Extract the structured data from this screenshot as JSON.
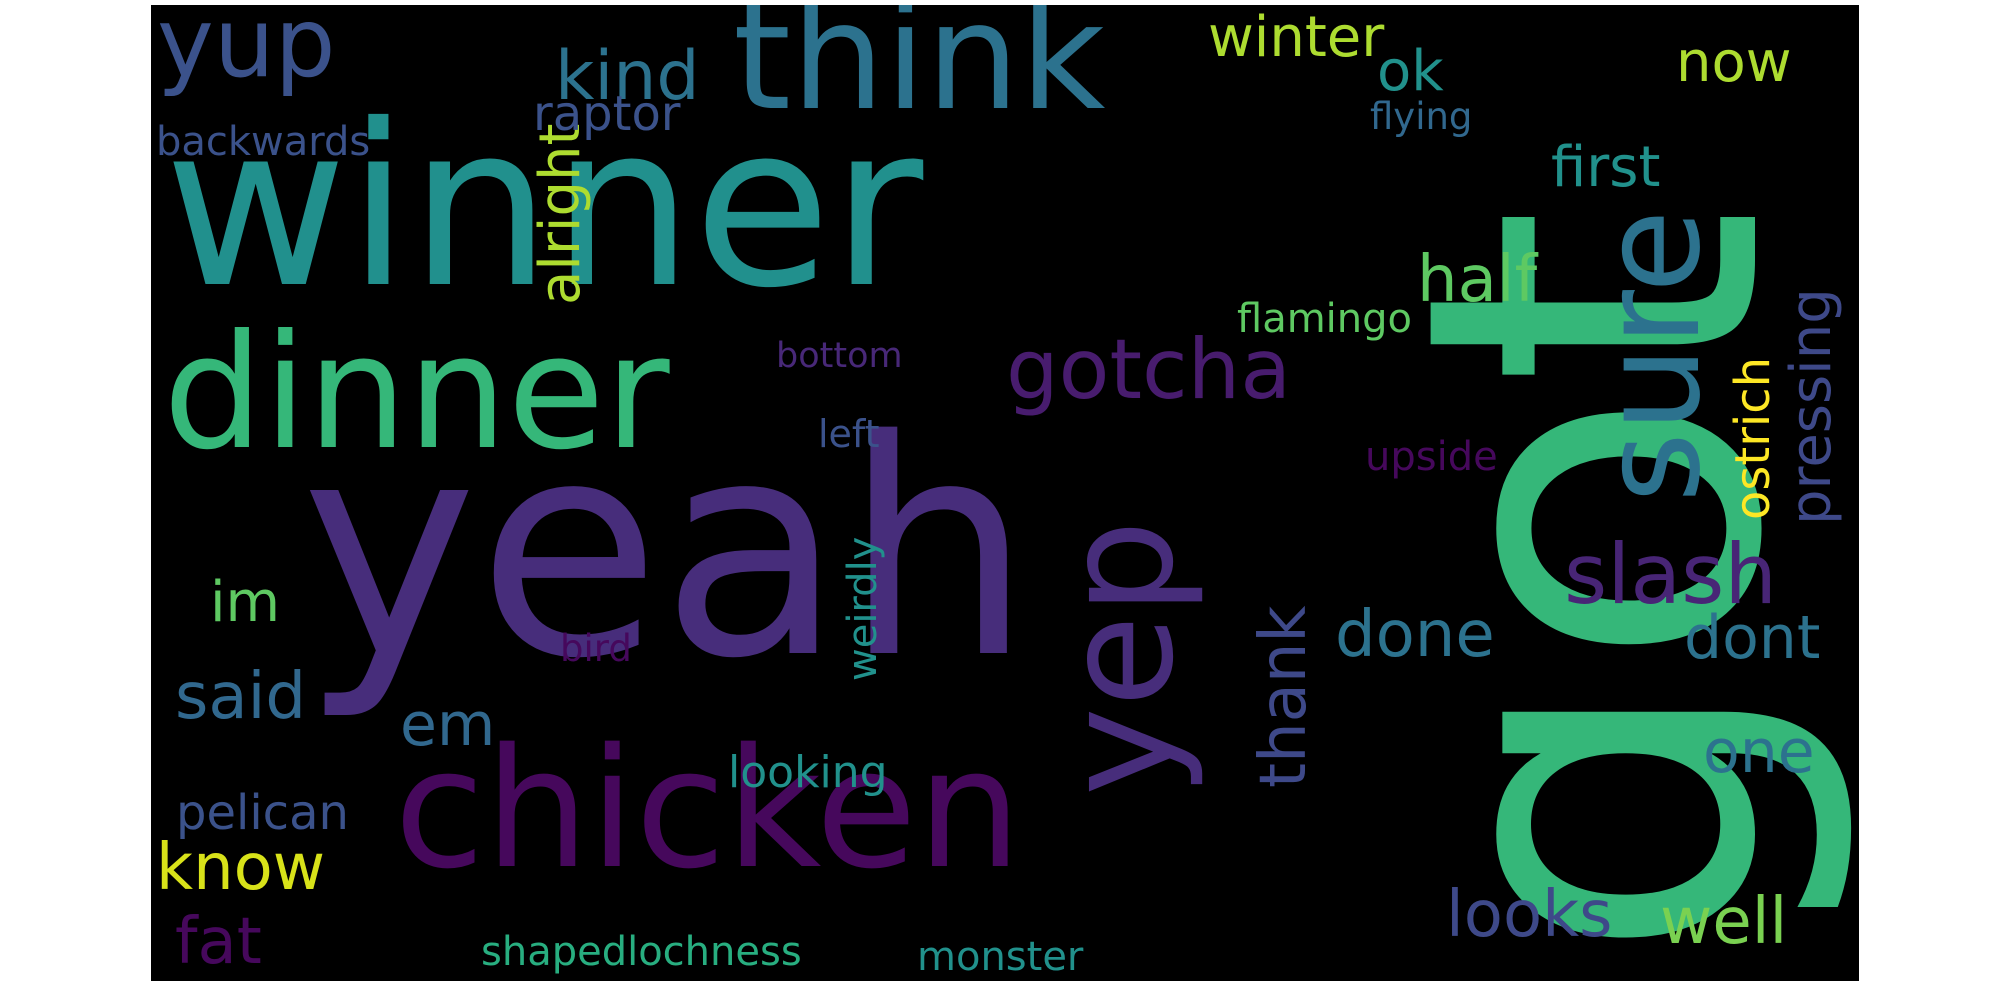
{
  "palette": {
    "purple_dark": "#46085c",
    "purple": "#472d7b",
    "indigo": "#3b528b",
    "blue": "#2c728e",
    "teal": "#21918c",
    "teal_green": "#28ae80",
    "green": "#5ec962",
    "lime": "#addc30",
    "yellow": "#fde725",
    "background": "#000000"
  },
  "words": [
    {
      "id": "got",
      "text": "got",
      "color": "#35b779",
      "rotated": true
    },
    {
      "id": "winner",
      "text": "winner",
      "color": "#21908d",
      "rotated": false
    },
    {
      "id": "yeah",
      "text": "yeah",
      "color": "#472d7b",
      "rotated": false
    },
    {
      "id": "think",
      "text": "think",
      "color": "#2c728e",
      "rotated": false
    },
    {
      "id": "dinner",
      "text": "dinner",
      "color": "#35b779",
      "rotated": false
    },
    {
      "id": "chicken",
      "text": "chicken",
      "color": "#46085c",
      "rotated": false
    },
    {
      "id": "sure",
      "text": "sure",
      "color": "#2c728e",
      "rotated": true
    },
    {
      "id": "yep",
      "text": "yep",
      "color": "#472d7b",
      "rotated": true
    },
    {
      "id": "yup",
      "text": "yup",
      "color": "#3b528b",
      "rotated": false
    },
    {
      "id": "gotcha",
      "text": "gotcha",
      "color": "#481c6e",
      "rotated": false
    },
    {
      "id": "slash",
      "text": "slash",
      "color": "#482576",
      "rotated": false
    },
    {
      "id": "winter",
      "text": "winter",
      "color": "#addc30",
      "rotated": false
    },
    {
      "id": "ok",
      "text": "ok",
      "color": "#21918c",
      "rotated": false
    },
    {
      "id": "now",
      "text": "now",
      "color": "#addc30",
      "rotated": false
    },
    {
      "id": "kind",
      "text": "kind",
      "color": "#2c728e",
      "rotated": false
    },
    {
      "id": "alright",
      "text": "alright",
      "color": "#addc30",
      "rotated": true
    },
    {
      "id": "raptor",
      "text": "raptor",
      "color": "#3b528b",
      "rotated": false
    },
    {
      "id": "flying",
      "text": "flying",
      "color": "#31688e",
      "rotated": false
    },
    {
      "id": "backwards",
      "text": "backwards",
      "color": "#3b528b",
      "rotated": false
    },
    {
      "id": "first",
      "text": "first",
      "color": "#21918c",
      "rotated": false
    },
    {
      "id": "half",
      "text": "half",
      "color": "#5ec962",
      "rotated": false
    },
    {
      "id": "pressing",
      "text": "pressing",
      "color": "#3e4989",
      "rotated": true
    },
    {
      "id": "ostrich",
      "text": "ostrich",
      "color": "#fde725",
      "rotated": true
    },
    {
      "id": "flamingo",
      "text": "flamingo",
      "color": "#5ec962",
      "rotated": false
    },
    {
      "id": "bottom",
      "text": "bottom",
      "color": "#482878",
      "rotated": false
    },
    {
      "id": "left",
      "text": "left",
      "color": "#3b528b",
      "rotated": false
    },
    {
      "id": "upside",
      "text": "upside",
      "color": "#46085c",
      "rotated": false
    },
    {
      "id": "im",
      "text": "im",
      "color": "#5ec962",
      "rotated": false
    },
    {
      "id": "done",
      "text": "done",
      "color": "#2c728e",
      "rotated": false
    },
    {
      "id": "dont",
      "text": "dont",
      "color": "#2c728e",
      "rotated": false
    },
    {
      "id": "weirdly",
      "text": "weirdly",
      "color": "#21918c",
      "rotated": true
    },
    {
      "id": "bird",
      "text": "bird",
      "color": "#46085c",
      "rotated": false
    },
    {
      "id": "said",
      "text": "said",
      "color": "#31688e",
      "rotated": false
    },
    {
      "id": "em",
      "text": "em",
      "color": "#31688e",
      "rotated": false
    },
    {
      "id": "thank",
      "text": "thank",
      "color": "#3e4989",
      "rotated": true
    },
    {
      "id": "one",
      "text": "one",
      "color": "#2c728e",
      "rotated": false
    },
    {
      "id": "looking",
      "text": "looking",
      "color": "#21918c",
      "rotated": false
    },
    {
      "id": "pelican",
      "text": "pelican",
      "color": "#3b528b",
      "rotated": false
    },
    {
      "id": "know",
      "text": "know",
      "color": "#d8e219",
      "rotated": false
    },
    {
      "id": "fat",
      "text": "fat",
      "color": "#46085c",
      "rotated": false
    },
    {
      "id": "looks",
      "text": "looks",
      "color": "#3e4989",
      "rotated": false
    },
    {
      "id": "well",
      "text": "well",
      "color": "#7ad151",
      "rotated": false
    },
    {
      "id": "shapedlochness",
      "text": "shapedlochness",
      "color": "#28ae80",
      "rotated": false
    },
    {
      "id": "monster",
      "text": "monster",
      "color": "#21918c",
      "rotated": false
    }
  ]
}
